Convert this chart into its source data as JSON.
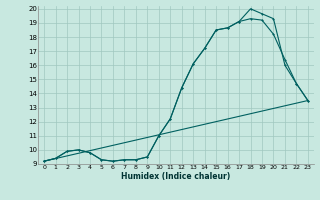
{
  "xlabel": "Humidex (Indice chaleur)",
  "bg_color": "#c8e8e0",
  "grid_color": "#a0c8c0",
  "line_color": "#006060",
  "xlim": [
    -0.5,
    23.5
  ],
  "ylim": [
    9,
    20.2
  ],
  "xticks": [
    0,
    1,
    2,
    3,
    4,
    5,
    6,
    7,
    8,
    9,
    10,
    11,
    12,
    13,
    14,
    15,
    16,
    17,
    18,
    19,
    20,
    21,
    22,
    23
  ],
  "yticks": [
    9,
    10,
    11,
    12,
    13,
    14,
    15,
    16,
    17,
    18,
    19,
    20
  ],
  "line1_x": [
    0,
    1,
    2,
    3,
    4,
    5,
    6,
    7,
    8,
    9,
    10,
    11,
    12,
    13,
    14,
    15,
    16,
    17,
    18,
    19,
    20,
    21,
    22,
    23
  ],
  "line1_y": [
    9.2,
    9.4,
    9.9,
    10.0,
    9.8,
    9.3,
    9.2,
    9.3,
    9.3,
    9.5,
    11.0,
    12.2,
    14.4,
    16.1,
    17.2,
    18.5,
    18.65,
    19.1,
    20.0,
    19.65,
    19.3,
    16.0,
    14.7,
    13.5
  ],
  "line2_x": [
    0,
    1,
    2,
    3,
    4,
    5,
    6,
    7,
    8,
    9,
    10,
    11,
    12,
    13,
    14,
    15,
    16,
    17,
    18,
    19,
    20,
    21,
    22,
    23
  ],
  "line2_y": [
    9.2,
    9.4,
    9.9,
    10.0,
    9.8,
    9.3,
    9.2,
    9.3,
    9.3,
    9.5,
    11.0,
    12.2,
    14.4,
    16.1,
    17.2,
    18.5,
    18.65,
    19.1,
    19.3,
    19.2,
    18.2,
    16.4,
    14.7,
    13.5
  ],
  "line3_x": [
    0,
    23
  ],
  "line3_y": [
    9.2,
    13.5
  ]
}
